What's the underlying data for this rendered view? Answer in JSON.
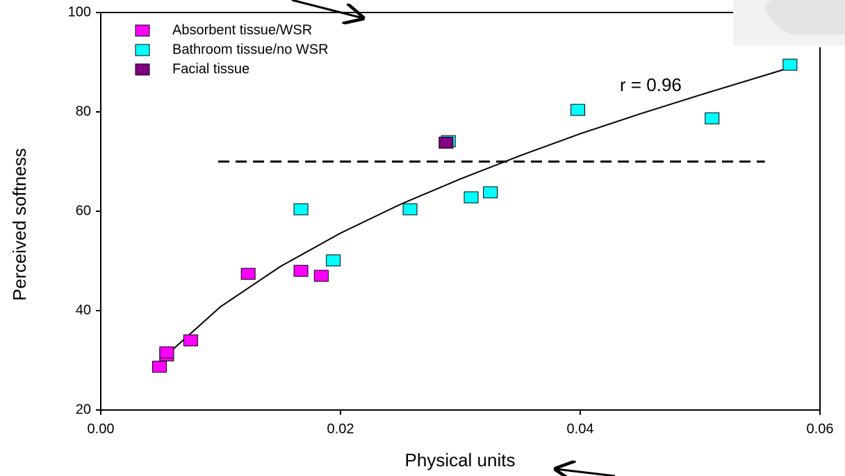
{
  "chart_data": {
    "type": "scatter",
    "x_label": "Physical units",
    "y_label": "Perceived softness",
    "annotation": "r = 0.96",
    "xlim": [
      0,
      0.06
    ],
    "ylim": [
      20,
      100
    ],
    "xticks": [
      {
        "value": 0,
        "label": "0.00"
      },
      0.02,
      0.04,
      0.06
    ],
    "yticks": [
      20,
      40,
      60,
      80,
      100
    ],
    "series": [
      {
        "name": "Absorbent tissue/WSR",
        "color": "#ff00ff",
        "x": [
          0.0049,
          0.0055,
          0.0055,
          0.0075,
          0.0123,
          0.0167,
          0.0184
        ],
        "values": [
          28.7,
          31.0,
          31.6,
          34.0,
          47.4,
          48.0,
          47.0
        ]
      },
      {
        "name": "Bathroom tissue/no WSR",
        "color": "#00ffff",
        "x": [
          0.0167,
          0.0194,
          0.0258,
          0.029,
          0.0309,
          0.0325,
          0.0398,
          0.051,
          0.0575
        ],
        "values": [
          60.4,
          50.1,
          60.4,
          74.1,
          62.8,
          63.8,
          80.4,
          78.7,
          89.5
        ]
      },
      {
        "name": "Facial tissue",
        "color": "#800080",
        "x": [
          0.0288
        ],
        "values": [
          73.8
        ]
      }
    ],
    "fit_line": {
      "x": [
        0.005,
        0.01,
        0.015,
        0.02,
        0.025,
        0.03,
        0.035,
        0.04,
        0.045,
        0.05,
        0.0575
      ],
      "values": [
        30,
        40.8,
        48.9,
        55.6,
        61.4,
        66.5,
        71.2,
        75.6,
        79.6,
        83.4,
        88.9
      ]
    },
    "reference_line": {
      "value": 70,
      "x": [
        0.0098,
        0.0554
      ]
    }
  }
}
